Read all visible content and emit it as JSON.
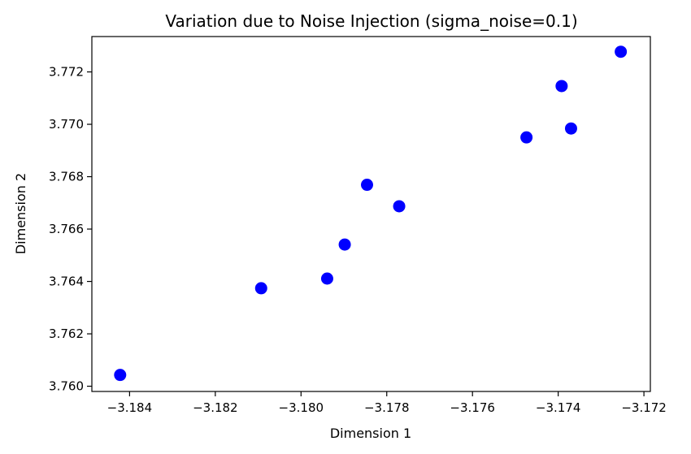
{
  "chart_data": {
    "type": "scatter",
    "title": "Variation due to Noise Injection (sigma_noise=0.1)",
    "xlabel": "Dimension 1",
    "ylabel": "Dimension 2",
    "xlim": [
      -3.18488,
      -3.17185
    ],
    "ylim": [
      3.7598,
      3.77335
    ],
    "grid": false,
    "legend": "none",
    "point_color": "#0000ff",
    "x_ticks": [
      {
        "value": -3.184,
        "label": "−3.184"
      },
      {
        "value": -3.182,
        "label": "−3.182"
      },
      {
        "value": -3.18,
        "label": "−3.180"
      },
      {
        "value": -3.178,
        "label": "−3.178"
      },
      {
        "value": -3.176,
        "label": "−3.176"
      },
      {
        "value": -3.174,
        "label": "−3.174"
      },
      {
        "value": -3.172,
        "label": "−3.172"
      }
    ],
    "y_ticks": [
      {
        "value": 3.76,
        "label": "3.760"
      },
      {
        "value": 3.762,
        "label": "3.762"
      },
      {
        "value": 3.764,
        "label": "3.764"
      },
      {
        "value": 3.766,
        "label": "3.766"
      },
      {
        "value": 3.768,
        "label": "3.768"
      },
      {
        "value": 3.77,
        "label": "3.770"
      },
      {
        "value": 3.772,
        "label": "3.772"
      }
    ],
    "points": [
      {
        "x": -3.18422,
        "y": 3.76043
      },
      {
        "x": -3.18093,
        "y": 3.76374
      },
      {
        "x": -3.17939,
        "y": 3.76411
      },
      {
        "x": -3.17898,
        "y": 3.76541
      },
      {
        "x": -3.17846,
        "y": 3.76769
      },
      {
        "x": -3.17771,
        "y": 3.76687
      },
      {
        "x": -3.17474,
        "y": 3.7695
      },
      {
        "x": -3.17392,
        "y": 3.77146
      },
      {
        "x": -3.1737,
        "y": 3.76984
      },
      {
        "x": -3.17254,
        "y": 3.77277
      }
    ]
  }
}
